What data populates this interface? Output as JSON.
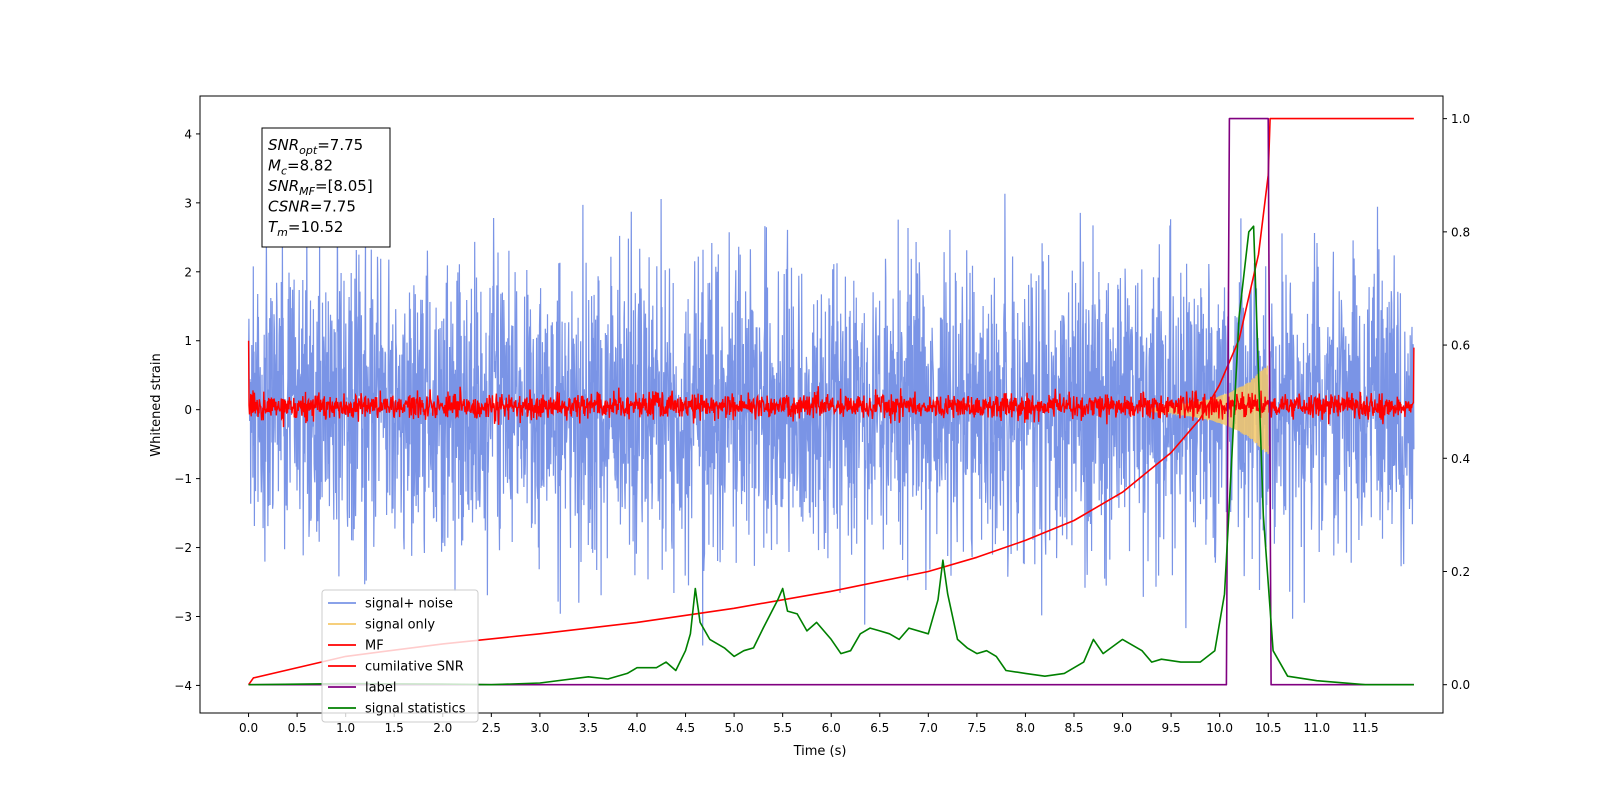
{
  "chart_data": {
    "type": "line",
    "xlabel": "Time (s)",
    "ylabel": "Whitened strain",
    "xlim": [
      -0.5,
      12.3
    ],
    "ylim": [
      -4.4,
      4.55
    ],
    "y2lim": [
      -0.05,
      1.04
    ],
    "x_ticks": [
      0.0,
      0.5,
      1.0,
      1.5,
      2.0,
      2.5,
      3.0,
      3.5,
      4.0,
      4.5,
      5.0,
      5.5,
      6.0,
      6.5,
      7.0,
      7.5,
      8.0,
      8.5,
      9.0,
      9.5,
      10.0,
      10.5,
      11.0,
      11.5
    ],
    "x_tick_labels": [
      "0.0",
      "0.5",
      "1.0",
      "1.5",
      "2.0",
      "2.5",
      "3.0",
      "3.5",
      "4.0",
      "4.5",
      "5.0",
      "5.5",
      "6.0",
      "6.5",
      "7.0",
      "7.5",
      "8.0",
      "8.5",
      "9.0",
      "9.5",
      "10.0",
      "10.5",
      "11.0",
      "11.5"
    ],
    "y_ticks": [
      4,
      3,
      2,
      1,
      0,
      -1,
      -2,
      -3,
      -4
    ],
    "y_tick_labels": [
      "4",
      "3",
      "2",
      "1",
      "0",
      "−1",
      "−2",
      "−3",
      "−4"
    ],
    "y2_ticks": [
      1.0,
      0.8,
      0.6,
      0.4,
      0.2,
      0.0
    ],
    "y2_tick_labels": [
      "1.0",
      "0.8",
      "0.6",
      "0.4",
      "0.2",
      "0.0"
    ],
    "grid": false,
    "legend_position": "lower-left",
    "legend": [
      {
        "label": "signal+ noise",
        "color": "#7a94e6"
      },
      {
        "label": "signal only",
        "color": "#f5c869"
      },
      {
        "label": "MF",
        "color": "#ff0000"
      },
      {
        "label": "cumilative SNR",
        "color": "#ff0000"
      },
      {
        "label": "label",
        "color": "#800080"
      },
      {
        "label": "signal statistics",
        "color": "#008000"
      }
    ],
    "annotation": {
      "lines": [
        {
          "sym": "SNR",
          "sub": "opt",
          "value": "=7.75"
        },
        {
          "sym": "M",
          "sub": "c",
          "value": "=8.82"
        },
        {
          "sym": "SNR",
          "sub": "MF",
          "value": "=[8.05]"
        },
        {
          "sym": "CSNR",
          "sub": "",
          "value": "=7.75"
        },
        {
          "sym": "T",
          "sub": "m",
          "value": "=10.52"
        }
      ]
    },
    "series": [
      {
        "name": "signal+ noise",
        "axis": "left",
        "color": "#7a94e6",
        "x_range": [
          0.0,
          12.0
        ],
        "envelope_upper": 2.2,
        "envelope_lower": -2.2,
        "max": 4.15,
        "min": -3.95
      },
      {
        "name": "signal only",
        "axis": "left",
        "color": "#f5c869",
        "x": [
          9.3,
          9.5,
          9.7,
          9.9,
          10.1,
          10.3,
          10.45,
          10.5
        ],
        "amplitude": [
          0.02,
          0.05,
          0.1,
          0.15,
          0.25,
          0.4,
          0.6,
          0.65
        ]
      },
      {
        "name": "MF",
        "axis": "left",
        "color": "#ff0000",
        "x_range": [
          0.0,
          12.0
        ],
        "envelope_upper": 0.25,
        "envelope_lower": -0.15,
        "start_value": 1.0,
        "end_value": 0.9
      },
      {
        "name": "cumilative SNR",
        "axis": "right",
        "color": "#ff0000",
        "x": [
          0.0,
          0.05,
          1.0,
          2.0,
          3.0,
          4.0,
          5.0,
          6.0,
          7.0,
          7.5,
          8.0,
          8.5,
          9.0,
          9.5,
          9.8,
          10.0,
          10.2,
          10.4,
          10.5,
          10.52,
          12.0
        ],
        "y": [
          0.0,
          0.012,
          0.05,
          0.072,
          0.09,
          0.11,
          0.135,
          0.165,
          0.2,
          0.225,
          0.255,
          0.29,
          0.34,
          0.41,
          0.47,
          0.53,
          0.61,
          0.76,
          0.9,
          1.0,
          1.0
        ]
      },
      {
        "name": "label",
        "axis": "right",
        "color": "#800080",
        "x": [
          0.0,
          10.07,
          10.1,
          10.5,
          10.53,
          12.0
        ],
        "y": [
          0.0,
          0.0,
          1.0,
          1.0,
          0.0,
          0.0
        ]
      },
      {
        "name": "signal statistics",
        "axis": "right",
        "color": "#008000",
        "x": [
          0.0,
          1.0,
          2.0,
          2.5,
          3.0,
          3.5,
          3.7,
          3.9,
          4.0,
          4.2,
          4.3,
          4.4,
          4.5,
          4.55,
          4.6,
          4.65,
          4.75,
          4.9,
          5.0,
          5.1,
          5.2,
          5.3,
          5.45,
          5.5,
          5.55,
          5.65,
          5.75,
          5.85,
          6.0,
          6.1,
          6.2,
          6.3,
          6.4,
          6.5,
          6.6,
          6.7,
          6.8,
          7.0,
          7.1,
          7.15,
          7.2,
          7.3,
          7.4,
          7.5,
          7.6,
          7.7,
          7.8,
          8.0,
          8.2,
          8.4,
          8.6,
          8.7,
          8.8,
          9.0,
          9.2,
          9.3,
          9.4,
          9.6,
          9.8,
          9.95,
          10.05,
          10.1,
          10.2,
          10.3,
          10.35,
          10.4,
          10.45,
          10.55,
          10.7,
          11.0,
          11.5,
          12.0
        ],
        "y": [
          0.0,
          0.002,
          0.001,
          0.0,
          0.003,
          0.014,
          0.01,
          0.02,
          0.03,
          0.03,
          0.04,
          0.025,
          0.06,
          0.09,
          0.17,
          0.11,
          0.08,
          0.065,
          0.05,
          0.06,
          0.065,
          0.1,
          0.15,
          0.17,
          0.13,
          0.125,
          0.095,
          0.11,
          0.08,
          0.055,
          0.06,
          0.09,
          0.1,
          0.095,
          0.09,
          0.08,
          0.1,
          0.09,
          0.15,
          0.22,
          0.16,
          0.08,
          0.065,
          0.055,
          0.06,
          0.05,
          0.025,
          0.02,
          0.015,
          0.02,
          0.04,
          0.08,
          0.055,
          0.08,
          0.06,
          0.04,
          0.045,
          0.04,
          0.04,
          0.06,
          0.16,
          0.32,
          0.65,
          0.8,
          0.81,
          0.55,
          0.3,
          0.06,
          0.015,
          0.007,
          0.0,
          0.0
        ]
      }
    ]
  }
}
